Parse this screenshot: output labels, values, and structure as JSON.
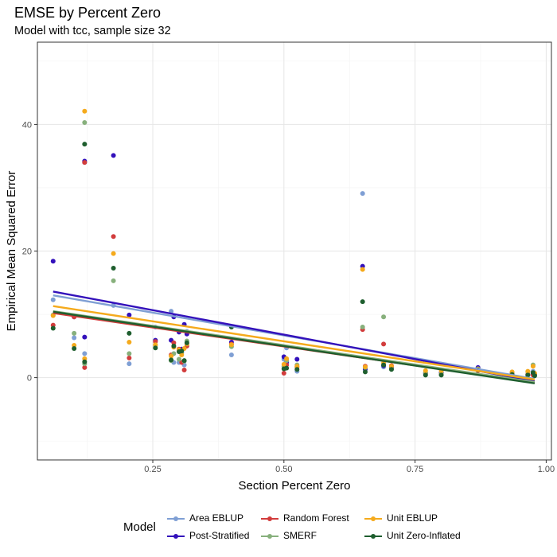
{
  "title": "EMSE by Percent Zero",
  "subtitle": "Model with tcc, sample size 32",
  "chart_data": {
    "type": "scatter",
    "xlabel": "Section Percent Zero",
    "ylabel": "Empirical Mean Squared Error",
    "xlim": [
      0.03,
      1.01
    ],
    "ylim": [
      -13,
      53
    ],
    "x_ticks": [
      0.25,
      0.5,
      0.75,
      1.0
    ],
    "x_tick_labels": [
      "0.25",
      "0.50",
      "0.75",
      "1.00"
    ],
    "y_ticks": [
      0,
      20,
      40
    ],
    "y_tick_labels": [
      "0",
      "20",
      "40"
    ],
    "grid": true,
    "legend_title": "Model",
    "legend_position": "bottom",
    "x": [
      0.06,
      0.1,
      0.12,
      0.12,
      0.175,
      0.205,
      0.255,
      0.285,
      0.29,
      0.3,
      0.305,
      0.31,
      0.315,
      0.4,
      0.5,
      0.505,
      0.525,
      0.65,
      0.655,
      0.69,
      0.705,
      0.77,
      0.8,
      0.87,
      0.935,
      0.965,
      0.975,
      0.978
    ],
    "series": [
      {
        "name": "Area EBLUP",
        "color": "#7f9fd4",
        "values": [
          12.3,
          6.3,
          3.8,
          34.0,
          11.4,
          2.2,
          8.0,
          10.5,
          2.4,
          2.4,
          4.0,
          2.0,
          7.3,
          3.6,
          2.9,
          4.7,
          1.0,
          29.1,
          1.4,
          1.7,
          1.5,
          0.5,
          0.7,
          1.5,
          0.8,
          0.5,
          1.0,
          0.3
        ],
        "fit": [
          13.0,
          -0.2
        ]
      },
      {
        "name": "Post-Stratified",
        "color": "#3311bb",
        "values": [
          18.4,
          9.6,
          6.4,
          34.2,
          35.1,
          9.9,
          5.9,
          5.9,
          9.6,
          7.2,
          4.5,
          8.4,
          6.9,
          5.6,
          3.3,
          2.4,
          2.9,
          17.6,
          1.3,
          1.9,
          1.6,
          0.7,
          0.8,
          1.6,
          0.6,
          0.4,
          0.6,
          0.5
        ],
        "fit": [
          13.6,
          -0.6
        ]
      },
      {
        "name": "Random Forest",
        "color": "#d23c3c",
        "values": [
          8.3,
          9.6,
          1.6,
          34.0,
          22.3,
          3.1,
          5.7,
          3.6,
          5.5,
          4.5,
          2.4,
          1.2,
          5.0,
          5.3,
          0.7,
          2.0,
          1.7,
          7.6,
          1.8,
          5.3,
          1.9,
          0.7,
          0.6,
          1.1,
          0.7,
          0.5,
          0.4,
          0.6
        ],
        "fit": [
          10.2,
          -0.8
        ]
      },
      {
        "name": "SMERF",
        "color": "#87b07c",
        "values": [
          9.9,
          7.0,
          2.2,
          40.3,
          15.3,
          3.8,
          5.1,
          2.7,
          3.8,
          2.9,
          3.9,
          2.6,
          5.8,
          4.9,
          1.8,
          2.7,
          2.0,
          8.0,
          1.6,
          9.6,
          1.4,
          0.8,
          0.6,
          1.4,
          0.6,
          0.9,
          2.0,
          0.4
        ],
        "fit": [
          10.5,
          -0.7
        ]
      },
      {
        "name": "Unit EBLUP",
        "color": "#f5aa1c",
        "values": [
          9.8,
          5.1,
          3.0,
          42.1,
          19.6,
          5.6,
          5.2,
          3.4,
          4.8,
          4.4,
          3.6,
          4.6,
          5.3,
          5.2,
          2.1,
          3.0,
          1.8,
          17.1,
          1.7,
          2.3,
          1.8,
          1.1,
          1.1,
          1.3,
          0.9,
          1.0,
          1.8,
          0.7
        ],
        "fit": [
          11.3,
          -0.3
        ]
      },
      {
        "name": "Unit Zero-Inflated",
        "color": "#1e5e2e",
        "values": [
          7.8,
          4.6,
          2.5,
          36.9,
          17.3,
          7.0,
          4.7,
          2.8,
          5.0,
          4.1,
          4.2,
          2.7,
          5.5,
          8.0,
          1.4,
          1.5,
          1.3,
          12.0,
          0.9,
          2.0,
          1.3,
          0.4,
          0.4,
          1.2,
          0.5,
          0.4,
          0.8,
          0.3
        ],
        "fit": [
          10.4,
          -0.9
        ]
      }
    ]
  }
}
